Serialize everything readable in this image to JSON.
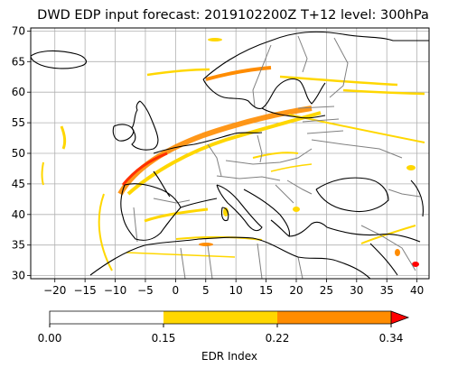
{
  "title": "DWD EDP input forecast: 2019102200Z  T+12 level: 300hPa",
  "x_ticks": [
    "−20",
    "−15",
    "−10",
    "−5",
    "0",
    "5",
    "10",
    "15",
    "20",
    "25",
    "30",
    "35",
    "40"
  ],
  "x_tick_values": [
    -20,
    -15,
    -10,
    -5,
    0,
    5,
    10,
    15,
    20,
    25,
    30,
    35,
    40
  ],
  "y_ticks": [
    "30",
    "35",
    "40",
    "45",
    "50",
    "55",
    "60",
    "65",
    "70"
  ],
  "y_tick_values": [
    30,
    35,
    40,
    45,
    50,
    55,
    60,
    65,
    70
  ],
  "lon_range": [
    -24,
    42
  ],
  "lat_range": [
    29.5,
    70.5
  ],
  "grid": true,
  "colorbar": {
    "label": "EDR Index",
    "tick_labels": [
      "0.00",
      "0.15",
      "0.22",
      "0.34"
    ],
    "levels": [
      0.0,
      0.15,
      0.22,
      0.34
    ],
    "colors": [
      "#ffffff",
      "#ffd700",
      "#ff8c00",
      "#ff0000"
    ],
    "extend": "max"
  },
  "colors": {
    "coast": "#000000",
    "borders": "#808080",
    "grid": "#b0b0b0",
    "level_low": "#ffd700",
    "level_mid": "#ff8c00",
    "level_high": "#ff0000"
  }
}
